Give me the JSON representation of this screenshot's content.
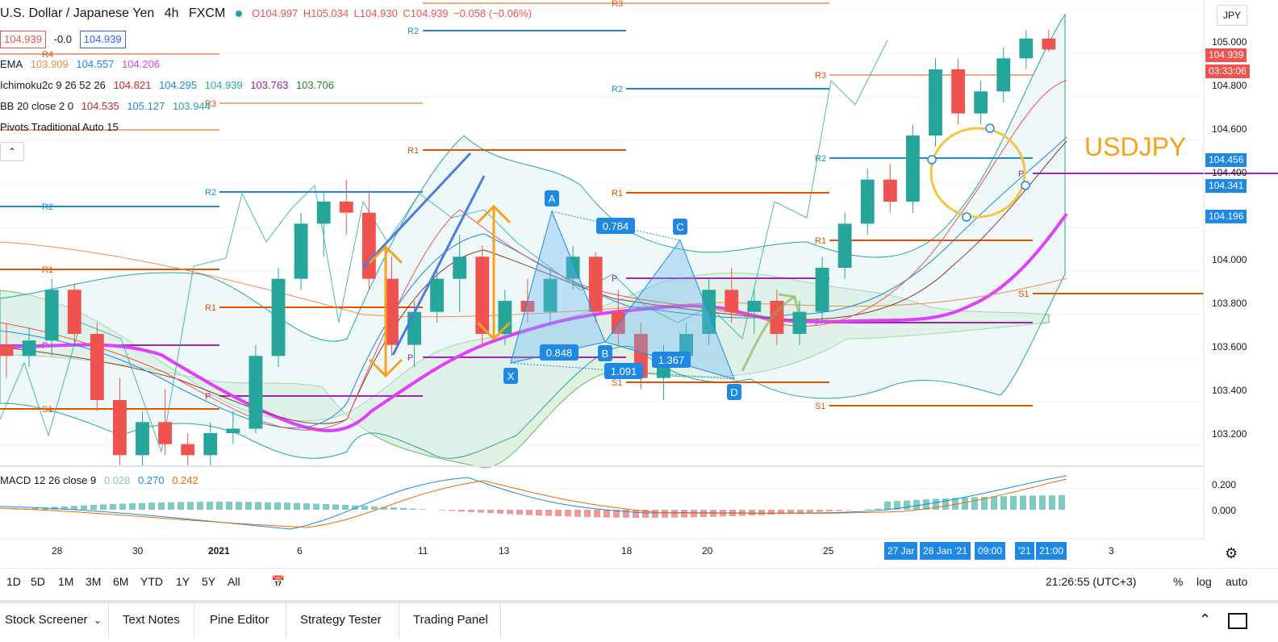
{
  "header": {
    "symbol": "U.S. Dollar / Japanese Yen",
    "interval": "4h",
    "source": "FXCM",
    "o": "O104.997",
    "h": "H105.034",
    "l": "L104.930",
    "c": "C104.939",
    "change": "−0.058 (−0.06%)"
  },
  "price_row": {
    "bid": "104.939",
    "spread": "-0.0",
    "ask": "104.939"
  },
  "indicators": {
    "ema": {
      "name": "EMA",
      "v1": "103.909",
      "v2": "104.557",
      "v3": "104.206"
    },
    "ichimoku": {
      "name": "Ichimoku2c 9 26 52 26",
      "v1": "104.821",
      "v2": "104.295",
      "v3": "104.939",
      "v4": "103.763",
      "v5": "103.706"
    },
    "bb": {
      "name": "BB 20 close 2 0",
      "v1": "104.535",
      "v2": "105.127",
      "v3": "103.944"
    },
    "pivots": {
      "name": "Pivots Traditional Auto 15"
    },
    "macd": {
      "name": "MACD 12 26 close 9",
      "v1": "0.028",
      "v2": "0.270",
      "v3": "0.242"
    }
  },
  "collapse_icon": "chevron-up-icon",
  "currency_button": "JPY",
  "annotation_title": "USDJPY",
  "chart_data": {
    "type": "candlestick",
    "symbol": "USDJPY",
    "y_axis_ticks": [
      "105.000",
      "104.800",
      "104.600",
      "104.400",
      "104.000",
      "103.800",
      "103.600",
      "103.400",
      "103.200"
    ],
    "ylim": [
      103.05,
      105.15
    ],
    "price_tags": [
      {
        "value": "104.939",
        "color": "#ef5350"
      },
      {
        "value": "03:33:06",
        "color": "#ef5350"
      },
      {
        "value": "104.456",
        "color": "#1e88e5"
      },
      {
        "value": "104.341",
        "color": "#1e88e5"
      },
      {
        "value": "104.196",
        "color": "#1e88e5"
      }
    ],
    "macd_ticks": [
      "0.200",
      "0.000"
    ],
    "x_tick_labels": [
      "28",
      "30",
      "2021",
      "6",
      "11",
      "13",
      "18",
      "20",
      "25",
      "3"
    ],
    "crosshair_labels": [
      "27 Jar",
      "28 Jan '21",
      "09:00",
      "'21",
      "21:00"
    ],
    "harmonic_pattern": {
      "points": [
        "X",
        "A",
        "B",
        "C",
        "D"
      ],
      "ratios": [
        "0.784",
        "0.848",
        "1.091",
        "1.367"
      ]
    },
    "pivot_labels": [
      "R3",
      "R2",
      "R1",
      "P",
      "S1",
      "R4"
    ],
    "ohlc_estimate": [
      [
        103.6,
        103.7,
        103.45,
        103.55
      ],
      [
        103.55,
        103.68,
        103.5,
        103.62
      ],
      [
        103.62,
        103.9,
        103.55,
        103.85
      ],
      [
        103.85,
        103.88,
        103.6,
        103.65
      ],
      [
        103.65,
        103.7,
        103.3,
        103.35
      ],
      [
        103.35,
        103.45,
        103.05,
        103.1
      ],
      [
        103.1,
        103.3,
        103.05,
        103.25
      ],
      [
        103.25,
        103.4,
        103.1,
        103.15
      ],
      [
        103.15,
        103.2,
        103.05,
        103.1
      ],
      [
        103.1,
        103.25,
        103.05,
        103.2
      ],
      [
        103.2,
        103.3,
        103.15,
        103.22
      ],
      [
        103.22,
        103.6,
        103.2,
        103.55
      ],
      [
        103.55,
        103.95,
        103.5,
        103.9
      ],
      [
        103.9,
        104.2,
        103.85,
        104.15
      ],
      [
        104.15,
        104.3,
        104.0,
        104.25
      ],
      [
        104.25,
        104.35,
        104.1,
        104.2
      ],
      [
        104.2,
        104.3,
        103.85,
        103.9
      ],
      [
        103.9,
        104.0,
        103.55,
        103.6
      ],
      [
        103.6,
        103.8,
        103.5,
        103.75
      ],
      [
        103.75,
        103.95,
        103.7,
        103.9
      ],
      [
        103.9,
        104.1,
        103.75,
        104.0
      ],
      [
        104.0,
        104.05,
        103.6,
        103.65
      ],
      [
        103.65,
        103.85,
        103.6,
        103.8
      ],
      [
        103.8,
        103.9,
        103.7,
        103.75
      ],
      [
        103.75,
        103.95,
        103.7,
        103.9
      ],
      [
        103.9,
        104.05,
        103.85,
        104.0
      ],
      [
        104.0,
        104.02,
        103.7,
        103.75
      ],
      [
        103.75,
        103.85,
        103.6,
        103.65
      ],
      [
        103.65,
        103.7,
        103.4,
        103.45
      ],
      [
        103.45,
        103.6,
        103.35,
        103.55
      ],
      [
        103.55,
        103.7,
        103.5,
        103.65
      ],
      [
        103.65,
        103.9,
        103.6,
        103.85
      ],
      [
        103.85,
        103.95,
        103.7,
        103.75
      ],
      [
        103.75,
        103.85,
        103.65,
        103.8
      ],
      [
        103.8,
        103.85,
        103.6,
        103.65
      ],
      [
        103.65,
        103.8,
        103.6,
        103.75
      ],
      [
        103.75,
        104.0,
        103.7,
        103.95
      ],
      [
        103.95,
        104.2,
        103.9,
        104.15
      ],
      [
        104.15,
        104.4,
        104.1,
        104.35
      ],
      [
        104.35,
        104.42,
        104.2,
        104.25
      ],
      [
        104.25,
        104.6,
        104.2,
        104.55
      ],
      [
        104.55,
        104.9,
        104.5,
        104.85
      ],
      [
        104.85,
        104.9,
        104.6,
        104.65
      ],
      [
        104.65,
        104.8,
        104.6,
        104.75
      ],
      [
        104.75,
        104.95,
        104.7,
        104.9
      ],
      [
        104.9,
        105.03,
        104.85,
        104.99
      ],
      [
        104.99,
        105.03,
        104.93,
        104.94
      ]
    ]
  },
  "bottom_toolbar": {
    "timeframes": [
      "1D",
      "5D",
      "1M",
      "3M",
      "6M",
      "YTD",
      "1Y",
      "5Y",
      "All"
    ],
    "clock": "21:26:55 (UTC+3)",
    "pct": "%",
    "log": "log",
    "auto": "auto"
  },
  "tabs": [
    "Stock Screener",
    "Text Notes",
    "Pine Editor",
    "Strategy Tester",
    "Trading Panel"
  ]
}
